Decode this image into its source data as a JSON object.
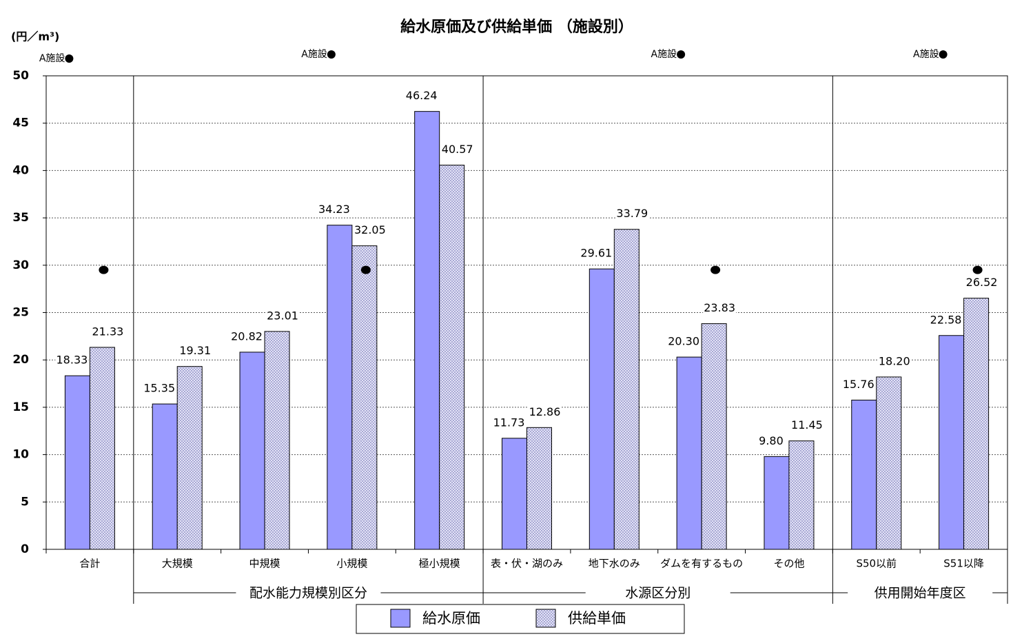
{
  "chart_data": {
    "type": "bar",
    "title": "給水原価及び供給単価 （施設別）",
    "y_label": "(円／m³)",
    "categories": [
      "合計",
      "大規模",
      "中規模",
      "小規模",
      "極小規模",
      "表・伏・湖のみ",
      "地下水のみ",
      "ダムを有するもの",
      "その他",
      "S50以前",
      "S51以降"
    ],
    "group_labels": [
      "配水能力規模別区分",
      "水源区分別",
      "供用開始年度区"
    ],
    "series": [
      {
        "name": "給水原価",
        "color": "#9999ff",
        "values": [
          18.33,
          15.35,
          20.82,
          34.23,
          46.24,
          11.73,
          29.61,
          20.3,
          9.8,
          15.76,
          22.58
        ],
        "value_labels": [
          "18.33",
          "15.35",
          "20.82",
          "34.23",
          "46.24",
          "11.73",
          "29.61",
          "20.30",
          "9.80",
          "15.76",
          "22.58"
        ]
      },
      {
        "name": "供給単価",
        "color": "#9999cc",
        "pattern": "crosshatch",
        "values": [
          21.33,
          19.31,
          23.01,
          32.05,
          40.57,
          12.86,
          33.79,
          23.83,
          11.45,
          18.2,
          26.52
        ],
        "value_labels": [
          "21.33",
          "19.31",
          "23.01",
          "32.05",
          "40.57",
          "12.86",
          "33.79",
          "23.83",
          "11.45",
          "18.20",
          "26.52"
        ]
      },
      {
        "name": "A施設",
        "type": "scatter",
        "color": "#000000",
        "values": [
          29.5,
          null,
          null,
          29.5,
          null,
          null,
          null,
          29.5,
          null,
          null,
          29.5
        ]
      }
    ],
    "ylim": [
      0,
      50
    ],
    "yticks": [
      0,
      5,
      10,
      15,
      20,
      25,
      30,
      35,
      40,
      45,
      50
    ],
    "grid": true,
    "legend": "bottom"
  }
}
